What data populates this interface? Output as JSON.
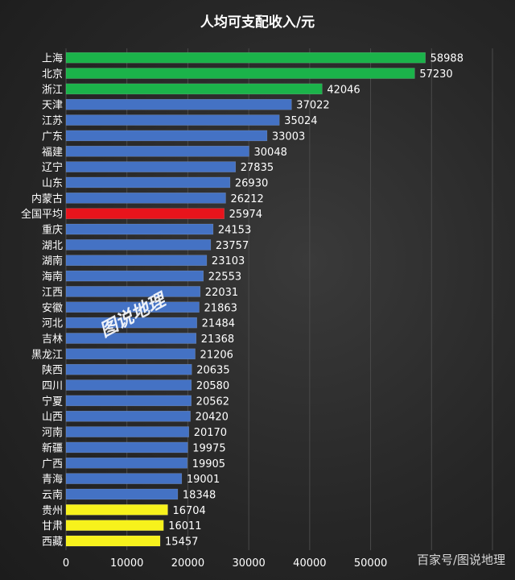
{
  "chart_data": {
    "type": "bar",
    "orientation": "horizontal",
    "title": "人均可支配收入/元",
    "categories": [
      "上海",
      "北京",
      "浙江",
      "天津",
      "江苏",
      "广东",
      "福建",
      "辽宁",
      "山东",
      "内蒙古",
      "全国平均",
      "重庆",
      "湖北",
      "湖南",
      "海南",
      "江西",
      "安徽",
      "河北",
      "吉林",
      "黑龙江",
      "陕西",
      "四川",
      "宁夏",
      "山西",
      "河南",
      "新疆",
      "广西",
      "青海",
      "云南",
      "贵州",
      "甘肃",
      "西藏"
    ],
    "values": [
      58988,
      57230,
      42046,
      37022,
      35024,
      33003,
      30048,
      27835,
      26930,
      26212,
      25974,
      24153,
      23757,
      23103,
      22553,
      22031,
      21863,
      21484,
      21368,
      21206,
      20635,
      20580,
      20562,
      20420,
      20170,
      19975,
      19905,
      19001,
      18348,
      16704,
      16011,
      15457
    ],
    "colors": [
      "#1bb34a",
      "#1bb34a",
      "#1bb34a",
      "#4472c4",
      "#4472c4",
      "#4472c4",
      "#4472c4",
      "#4472c4",
      "#4472c4",
      "#4472c4",
      "#e8141c",
      "#4472c4",
      "#4472c4",
      "#4472c4",
      "#4472c4",
      "#4472c4",
      "#4472c4",
      "#4472c4",
      "#4472c4",
      "#4472c4",
      "#4472c4",
      "#4472c4",
      "#4472c4",
      "#4472c4",
      "#4472c4",
      "#4472c4",
      "#4472c4",
      "#4472c4",
      "#4472c4",
      "#f7f21c",
      "#f7f21c",
      "#f7f21c"
    ],
    "xticks": [
      0,
      10000,
      20000,
      30000,
      40000,
      50000
    ],
    "xlim": [
      0,
      70000
    ],
    "grid": true,
    "legend": "none"
  },
  "watermark": {
    "text": "百家号/图说地理",
    "stamp": "图说地理"
  }
}
